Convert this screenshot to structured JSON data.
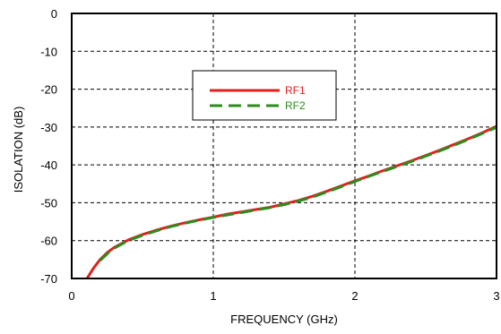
{
  "chart_data": {
    "type": "line",
    "title": "",
    "xlabel": "FREQUENCY (GHz)",
    "ylabel": "ISOLATION (dB)",
    "xlim": [
      0,
      3
    ],
    "ylim": [
      -70,
      0
    ],
    "x_ticks": [
      "0",
      "1",
      "2",
      "3"
    ],
    "y_ticks": [
      "0",
      "-10",
      "-20",
      "-30",
      "-40",
      "-50",
      "-60",
      "-70"
    ],
    "grid": true,
    "legend_position": "inside-top-center",
    "series": [
      {
        "name": "RF1",
        "color": "#e0201e",
        "style": "solid",
        "x": [
          0.1,
          0.15,
          0.2,
          0.25,
          0.3,
          0.4,
          0.5,
          0.6,
          0.7,
          0.8,
          0.9,
          1.0,
          1.1,
          1.2,
          1.3,
          1.4,
          1.5,
          1.6,
          1.7,
          1.8,
          1.9,
          2.0,
          2.1,
          2.2,
          2.3,
          2.4,
          2.5,
          2.6,
          2.7,
          2.8,
          2.9,
          3.0
        ],
        "y": [
          -70.5,
          -67.5,
          -65.0,
          -63.2,
          -61.8,
          -59.8,
          -58.4,
          -57.2,
          -56.2,
          -55.3,
          -54.5,
          -53.8,
          -53.0,
          -52.4,
          -51.8,
          -51.2,
          -50.3,
          -49.4,
          -48.3,
          -47.0,
          -45.6,
          -44.2,
          -42.9,
          -41.5,
          -40.2,
          -38.9,
          -37.5,
          -36.1,
          -34.6,
          -33.1,
          -31.5,
          -29.8
        ]
      },
      {
        "name": "RF2",
        "color": "#2e8b1e",
        "style": "dashed",
        "x": [
          0.2,
          0.25,
          0.3,
          0.4,
          0.5,
          0.6,
          0.7,
          0.8,
          0.9,
          1.0,
          1.1,
          1.2,
          1.3,
          1.4,
          1.5,
          1.6,
          1.7,
          1.8,
          1.9,
          2.0,
          2.1,
          2.2,
          2.3,
          2.4,
          2.5,
          2.6,
          2.7,
          2.8,
          2.9,
          3.0
        ],
        "y": [
          -65.3,
          -63.5,
          -62.0,
          -60.0,
          -58.6,
          -57.4,
          -56.3,
          -55.4,
          -54.6,
          -53.9,
          -53.2,
          -52.6,
          -51.9,
          -51.3,
          -50.5,
          -49.6,
          -48.5,
          -47.2,
          -45.8,
          -44.4,
          -43.0,
          -41.7,
          -40.4,
          -39.1,
          -37.7,
          -36.3,
          -34.8,
          -33.3,
          -31.7,
          -30.1
        ]
      }
    ]
  }
}
